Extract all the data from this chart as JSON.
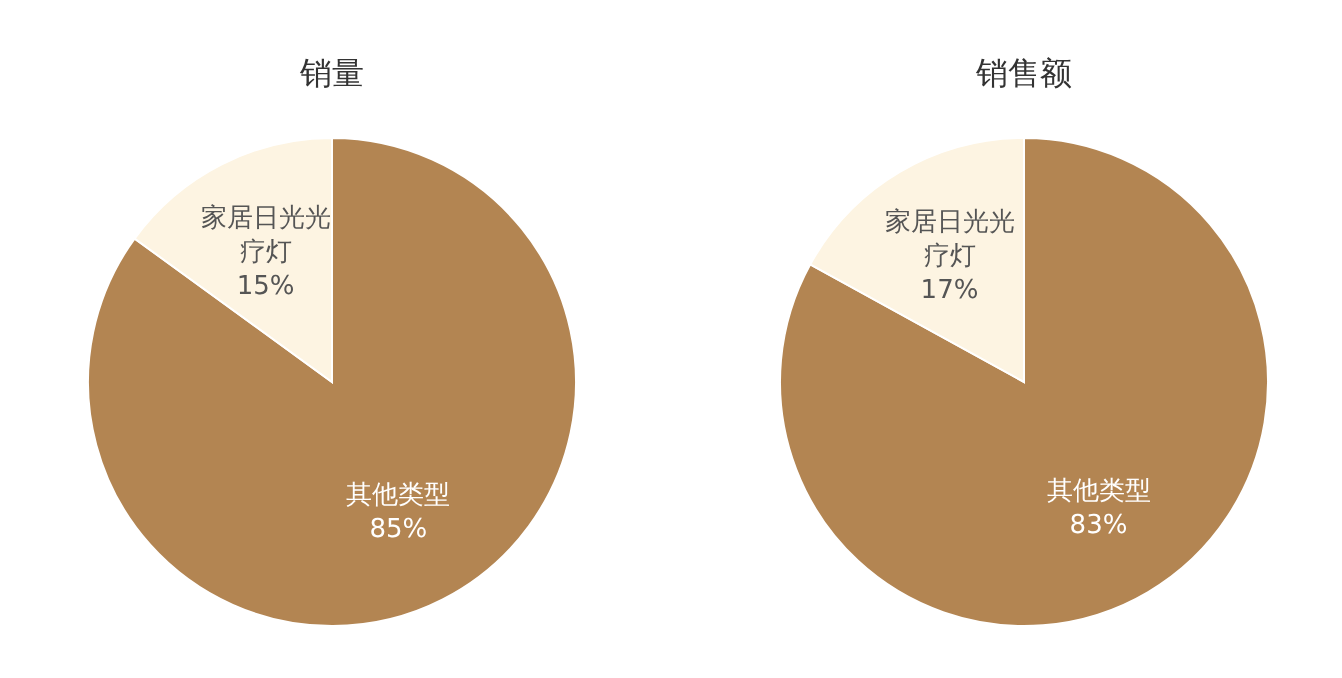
{
  "chart_data": [
    {
      "type": "pie",
      "title": "销量",
      "categories": [
        "其他类型",
        "家居日光光疗灯"
      ],
      "values": [
        85,
        15
      ],
      "colors": [
        "#b38552",
        "#fdf4e2"
      ],
      "value_labels": [
        "85%",
        "15%"
      ]
    },
    {
      "type": "pie",
      "title": "销售额",
      "categories": [
        "其他类型",
        "家居日光光疗灯"
      ],
      "values": [
        83,
        17
      ],
      "colors": [
        "#b38552",
        "#fdf4e2"
      ],
      "value_labels": [
        "83%",
        "17%"
      ]
    }
  ]
}
